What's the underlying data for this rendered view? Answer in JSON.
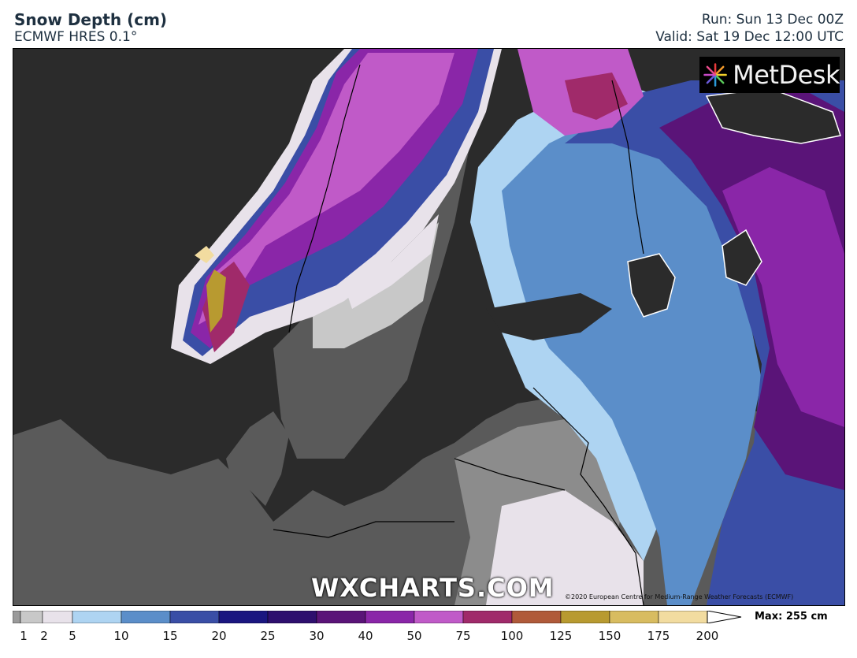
{
  "header": {
    "title": "Snow Depth (cm)",
    "model": "ECMWF HRES 0.1°",
    "run": "Run: Sun 13 Dec 00Z",
    "valid": "Valid: Sat 19 Dec 12:00 UTC"
  },
  "logo": {
    "text": "MetDesk"
  },
  "watermark": "WXCHARTS.COM",
  "copyright": "©2020 European Centre for Medium-Range Weather Forecasts (ECMWF)",
  "legend": {
    "max_label": "Max: 255 cm",
    "ticks": [
      "1",
      "2",
      "5",
      "10",
      "15",
      "20",
      "25",
      "30",
      "40",
      "50",
      "75",
      "100",
      "125",
      "150",
      "175",
      "200"
    ],
    "colors": [
      "#9a9a9a",
      "#c8c8c8",
      "#e8e2ea",
      "#aed4f2",
      "#5b8ec9",
      "#3a4ea6",
      "#1a1680",
      "#2e0f6e",
      "#5a1478",
      "#8a26a8",
      "#c05ac8",
      "#a02a6a",
      "#b05a3a",
      "#b89a30",
      "#d8bc60",
      "#f2dca0"
    ]
  },
  "map_colors": {
    "sea": "#2b2b2b",
    "land_bare": "#5a5a5a",
    "land_light": "#8c8c8c",
    "snow_1": "#c8c8c8",
    "snow_2": "#e8e2ea",
    "snow_5": "#aed4f2",
    "snow_10": "#5b8ec9",
    "snow_15": "#3a4ea6",
    "snow_20": "#1a1680",
    "snow_30": "#5a1478",
    "snow_40": "#8a26a8",
    "snow_50": "#c05ac8",
    "snow_100": "#b05a3a",
    "snow_150": "#b89a30",
    "snow_200": "#f2dca0"
  }
}
